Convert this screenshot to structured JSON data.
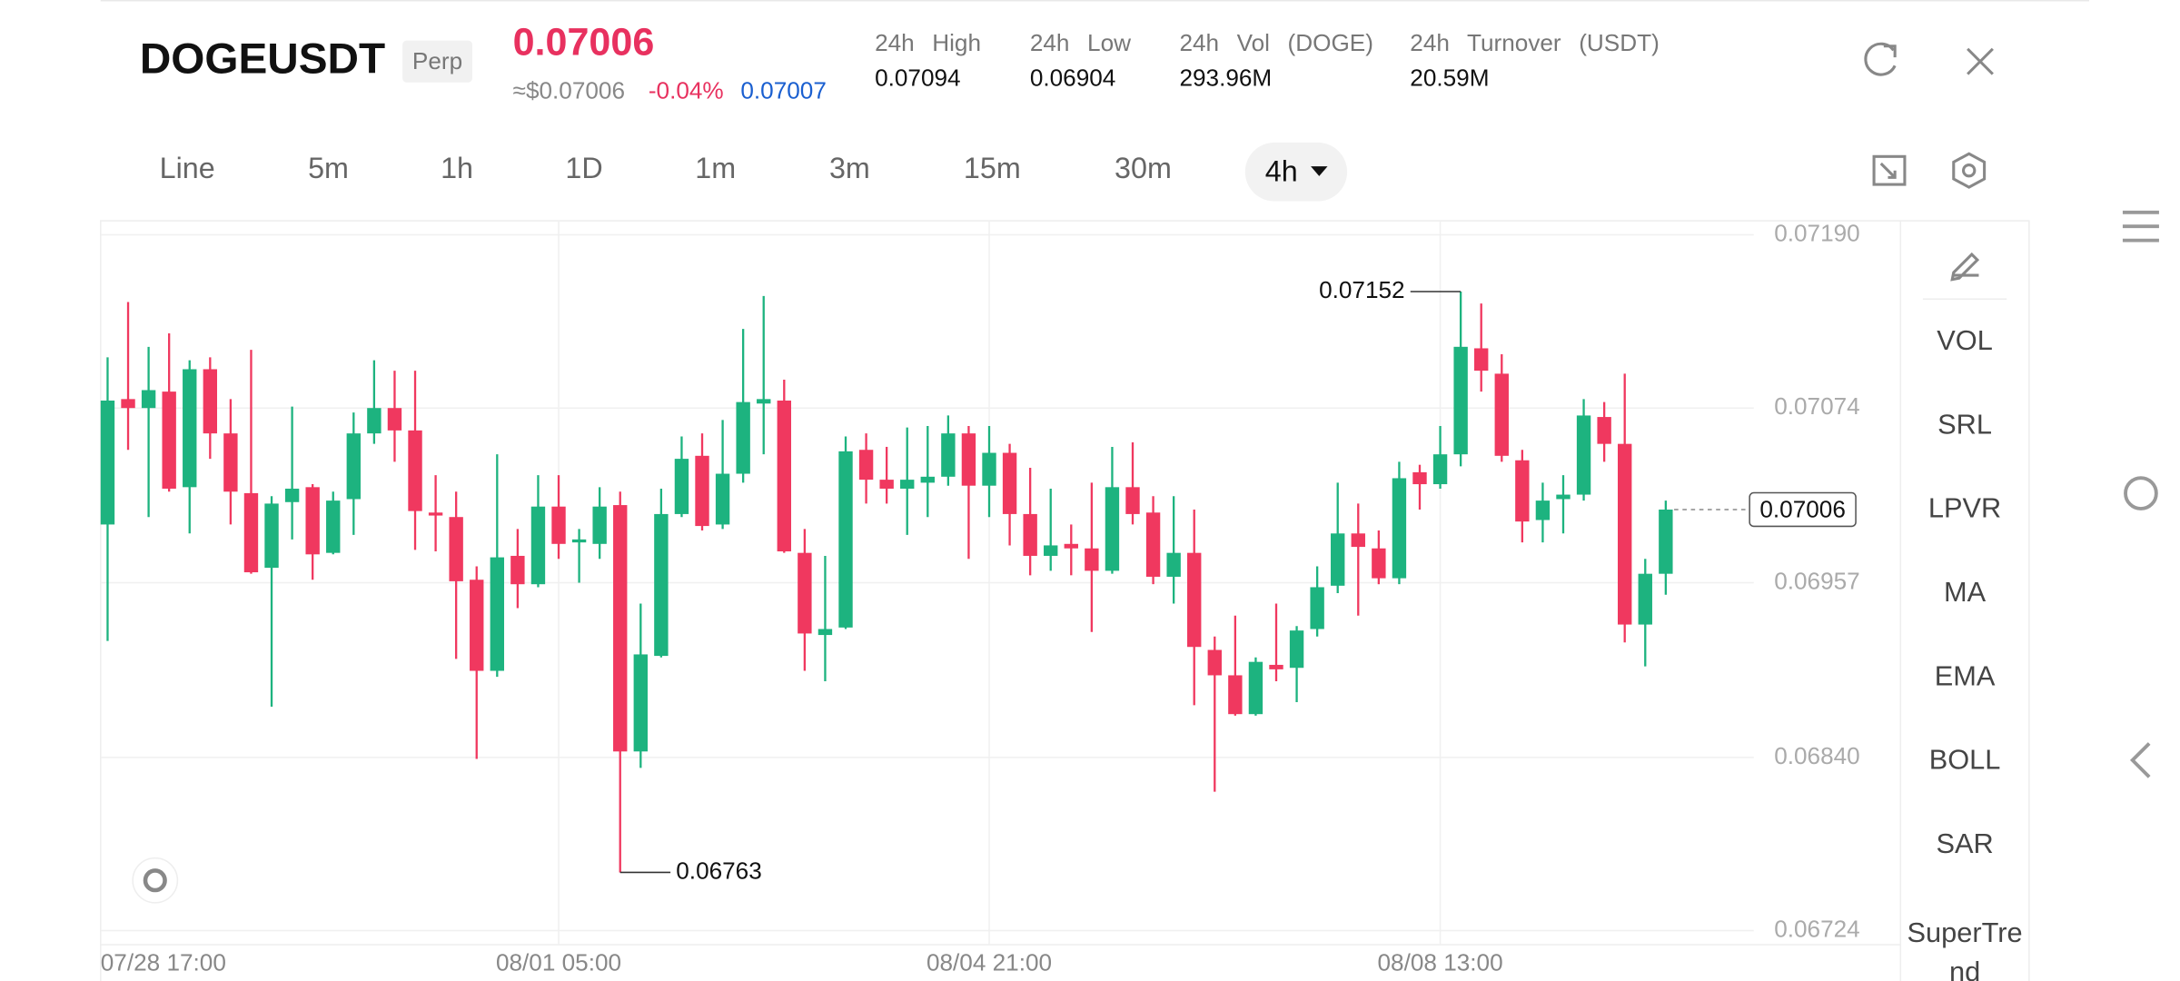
{
  "header": {
    "symbol": "DOGEUSDT",
    "badge": "Perp",
    "price": "0.07006",
    "approx": "≈$0.07006",
    "change": "-0.04%",
    "mark": "0.07007",
    "stats": [
      {
        "label": "24h High",
        "value": "0.07094"
      },
      {
        "label": "24h Low",
        "value": "0.06904"
      },
      {
        "label": "24h Vol (DOGE)",
        "value": "293.96M"
      },
      {
        "label": "24h Turnover (USDT)",
        "value": "20.59M"
      }
    ]
  },
  "timeframes": [
    "Line",
    "5m",
    "1h",
    "1D",
    "1m",
    "3m",
    "15m",
    "30m"
  ],
  "active_timeframe": "4h",
  "indicators": [
    "VOL",
    "SRL",
    "LPVR",
    "MA",
    "EMA",
    "BOLL",
    "SAR",
    "SuperTrend"
  ],
  "chart_data": {
    "type": "candlestick",
    "up_color": "#1db37f",
    "down_color": "#f0385f",
    "grid": true,
    "ylim": [
      0.067146,
      0.071994
    ],
    "yticks": [
      {
        "value": 0.0719,
        "label": "0.07190"
      },
      0.07074,
      0.06957,
      {
        "value": 0.0684,
        "label": "0.06840"
      },
      0.06724
    ],
    "categories": [
      "07/28 17:00",
      null,
      null,
      null,
      null,
      null,
      null,
      null,
      null,
      null,
      null,
      null,
      null,
      null,
      null,
      null,
      null,
      null,
      null,
      null,
      null,
      null,
      "08/01 05:00",
      null,
      null,
      null,
      null,
      null,
      null,
      null,
      null,
      null,
      null,
      null,
      null,
      null,
      null,
      null,
      null,
      null,
      null,
      null,
      null,
      "08/04 21:00",
      null,
      null,
      null,
      null,
      null,
      null,
      null,
      null,
      null,
      null,
      null,
      null,
      null,
      null,
      null,
      null,
      null,
      null,
      null,
      null,
      null,
      "08/08 13:00",
      null,
      null,
      null,
      null,
      null,
      null,
      null,
      null,
      null,
      null,
      null
    ],
    "open": [
      0.06996,
      0.0708,
      0.07074,
      0.07085,
      0.07021,
      0.071,
      0.07057,
      0.07017,
      0.06967,
      0.07011,
      0.07021,
      0.06977,
      0.07013,
      0.07057,
      0.07074,
      0.07059,
      0.07004,
      0.07001,
      0.06959,
      0.06898,
      0.06975,
      0.06956,
      0.07008,
      0.06984,
      0.06983,
      0.07009,
      0.06844,
      0.06908,
      0.07003,
      0.07042,
      0.06996,
      0.0703,
      0.07077,
      0.07079,
      0.06977,
      0.06922,
      0.06927,
      0.07046,
      0.07026,
      0.0702,
      0.07024,
      0.07028,
      0.07057,
      0.07022,
      0.07044,
      0.07003,
      0.06975,
      0.06983,
      0.0698,
      0.06965,
      0.07021,
      0.07004,
      0.06961,
      0.06977,
      0.06912,
      0.06895,
      0.06869,
      0.06902,
      0.069,
      0.06926,
      0.06955,
      0.0699,
      0.0698,
      0.0696,
      0.07031,
      0.07023,
      0.07043,
      0.07114,
      0.07097,
      0.07039,
      0.06999,
      0.07013,
      0.07016,
      0.07068,
      0.0705,
      0.06929,
      0.06963
    ],
    "high": [
      0.07108,
      0.07145,
      0.07115,
      0.07124,
      0.07106,
      0.07108,
      0.0708,
      0.07113,
      0.07015,
      0.07075,
      0.07023,
      0.07018,
      0.07071,
      0.07106,
      0.07099,
      0.07099,
      0.07029,
      0.07018,
      0.06968,
      0.07043,
      0.06993,
      0.07029,
      0.07029,
      0.06993,
      0.07021,
      0.07018,
      0.06943,
      0.0702,
      0.07055,
      0.07057,
      0.07066,
      0.07127,
      0.07149,
      0.07093,
      0.06993,
      0.06975,
      0.07055,
      0.07057,
      0.07048,
      0.07061,
      0.07062,
      0.07069,
      0.07062,
      0.07062,
      0.0705,
      0.07034,
      0.0702,
      0.06996,
      0.07024,
      0.07048,
      0.07051,
      0.07015,
      0.07015,
      0.07006,
      0.06921,
      0.06935,
      0.06907,
      0.06943,
      0.06928,
      0.06968,
      0.07024,
      0.0701,
      0.06992,
      0.07038,
      0.07036,
      0.07062,
      0.07152,
      0.07144,
      0.0711,
      0.07046,
      0.07024,
      0.07029,
      0.0708,
      0.07078,
      0.07097,
      0.06973,
      0.07012
    ],
    "low": [
      0.06918,
      0.07046,
      0.07001,
      0.07018,
      0.0699,
      0.0704,
      0.06996,
      0.06963,
      0.06874,
      0.06986,
      0.06959,
      0.06976,
      0.06989,
      0.0705,
      0.07038,
      0.06979,
      0.06978,
      0.06906,
      0.06839,
      0.06894,
      0.0694,
      0.06954,
      0.06973,
      0.06957,
      0.06973,
      0.06763,
      0.06833,
      0.06907,
      0.07001,
      0.06992,
      0.06993,
      0.07024,
      0.07043,
      0.06977,
      0.06898,
      0.06891,
      0.06926,
      0.0701,
      0.0701,
      0.06989,
      0.07001,
      0.07022,
      0.06973,
      0.07001,
      0.06982,
      0.06962,
      0.06965,
      0.06962,
      0.06924,
      0.06963,
      0.06996,
      0.06956,
      0.06943,
      0.06875,
      0.06817,
      0.06868,
      0.06868,
      0.06891,
      0.06877,
      0.06921,
      0.0695,
      0.06935,
      0.06956,
      0.06956,
      0.07006,
      0.0702,
      0.07035,
      0.07085,
      0.07038,
      0.06984,
      0.06984,
      0.0699,
      0.07012,
      0.07038,
      0.06917,
      0.06901,
      0.06949
    ],
    "close": [
      0.07079,
      0.07074,
      0.07086,
      0.0702,
      0.071,
      0.07057,
      0.07018,
      0.06964,
      0.0701,
      0.0702,
      0.06976,
      0.07012,
      0.07057,
      0.07074,
      0.07059,
      0.07005,
      0.07002,
      0.06958,
      0.06898,
      0.06974,
      0.06956,
      0.07008,
      0.06983,
      0.06986,
      0.07008,
      0.06844,
      0.06909,
      0.07003,
      0.0704,
      0.06995,
      0.0703,
      0.07078,
      0.0708,
      0.06978,
      0.06923,
      0.06926,
      0.07045,
      0.07026,
      0.0702,
      0.07026,
      0.07028,
      0.07057,
      0.07022,
      0.07044,
      0.07003,
      0.06975,
      0.06982,
      0.0698,
      0.06965,
      0.07021,
      0.07003,
      0.06961,
      0.06977,
      0.06914,
      0.06895,
      0.06869,
      0.06904,
      0.06899,
      0.06925,
      0.06954,
      0.0699,
      0.06981,
      0.0696,
      0.07027,
      0.07023,
      0.07043,
      0.07115,
      0.07099,
      0.07042,
      0.06998,
      0.07012,
      0.07016,
      0.07069,
      0.0705,
      0.06929,
      0.06963,
      0.07006
    ]
  }
}
